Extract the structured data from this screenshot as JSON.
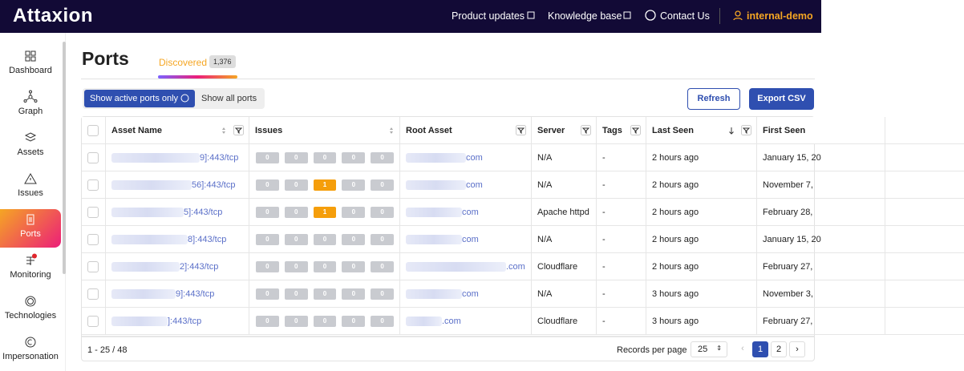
{
  "header": {
    "logo": "Attaxion",
    "links": [
      "Product updates",
      "Knowledge base",
      "Contact Us"
    ],
    "user": "internal-demo"
  },
  "sidebar": {
    "items": [
      "Dashboard",
      "Graph",
      "Assets",
      "Issues",
      "Ports",
      "Monitoring",
      "Technologies",
      "Impersonation"
    ],
    "active": "Ports"
  },
  "page": {
    "title": "Ports",
    "tab": "Discovered",
    "tab_count": "1,376"
  },
  "controls": {
    "toggles": [
      "Show active ports only",
      "Show all ports"
    ],
    "buttons": [
      "Refresh",
      "Export CSV"
    ]
  },
  "table": {
    "columns": [
      "Asset Name",
      "Issues",
      "Root Asset",
      "Server",
      "Tags",
      "Last Seen",
      "First Seen"
    ],
    "rows": [
      {
        "asset": "9]:443/tcp",
        "issues": [
          0,
          0,
          0,
          0,
          0
        ],
        "root": "com",
        "server": "N/A",
        "tags": "-",
        "last_seen": "2 hours ago",
        "first_seen": "January 15, 20"
      },
      {
        "asset": "56]:443/tcp",
        "issues": [
          0,
          0,
          1,
          0,
          0
        ],
        "root": "com",
        "server": "N/A",
        "tags": "-",
        "last_seen": "2 hours ago",
        "first_seen": "November 7,"
      },
      {
        "asset": "5]:443/tcp",
        "issues": [
          0,
          0,
          1,
          0,
          0
        ],
        "root": "com",
        "server": "Apache httpd",
        "tags": "-",
        "last_seen": "2 hours ago",
        "first_seen": "February 28,"
      },
      {
        "asset": "8]:443/tcp",
        "issues": [
          0,
          0,
          0,
          0,
          0
        ],
        "root": "com",
        "server": "N/A",
        "tags": "-",
        "last_seen": "2 hours ago",
        "first_seen": "January 15, 20"
      },
      {
        "asset": "2]:443/tcp",
        "issues": [
          0,
          0,
          0,
          0,
          0
        ],
        "root": ".com",
        "server": "Cloudflare",
        "tags": "-",
        "last_seen": "2 hours ago",
        "first_seen": "February 27,"
      },
      {
        "asset": "9]:443/tcp",
        "issues": [
          0,
          0,
          0,
          0,
          0
        ],
        "root": "com",
        "server": "N/A",
        "tags": "-",
        "last_seen": "3 hours ago",
        "first_seen": "November 3,"
      },
      {
        "asset": "]:443/tcp",
        "issues": [
          0,
          0,
          0,
          0,
          0
        ],
        "root": ".com",
        "server": "Cloudflare",
        "tags": "-",
        "last_seen": "3 hours ago",
        "first_seen": "February 27,"
      }
    ]
  },
  "footer": {
    "range": "1 - 25 / 48",
    "per_page_label": "Records per page",
    "per_page": "25",
    "pages": [
      "1",
      "2"
    ]
  }
}
